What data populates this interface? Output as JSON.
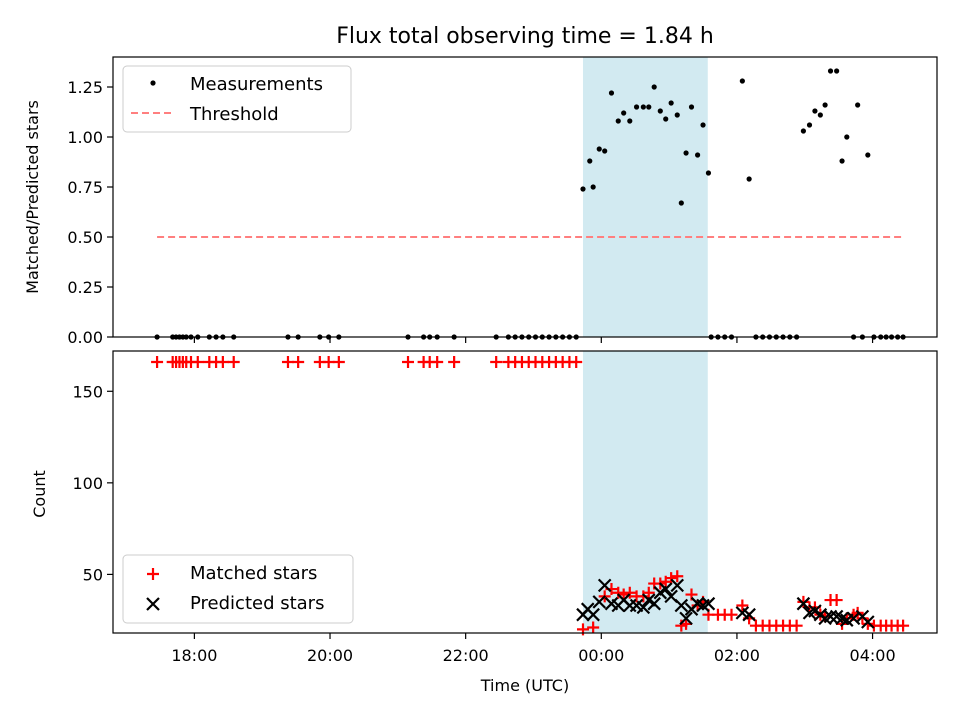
{
  "chart_data": {
    "type": "scatter",
    "title": "Flux total observing time = 1.84 h",
    "time_domain": {
      "start_hours": 16.8,
      "end_hours": 28.95
    },
    "x_ticks": [
      {
        "hour": 18,
        "label": "18:00"
      },
      {
        "hour": 20,
        "label": "20:00"
      },
      {
        "hour": 22,
        "label": "22:00"
      },
      {
        "hour": 24,
        "label": "00:00"
      },
      {
        "hour": 26,
        "label": "02:00"
      },
      {
        "hour": 28,
        "label": "04:00"
      }
    ],
    "xlabel": "Time (UTC)",
    "shaded_interval_hours": [
      23.73,
      25.57
    ],
    "top": {
      "ylabel": "Matched/Predicted stars",
      "ylim": [
        0,
        1.4
      ],
      "y_ticks": [
        0,
        0.25,
        0.5,
        0.75,
        1.0,
        1.25
      ],
      "y_tick_labels": [
        "0.00",
        "0.25",
        "0.50",
        "0.75",
        "1.00",
        "1.25"
      ],
      "threshold": {
        "value": 0.5,
        "x_range_hours": [
          17.45,
          28.45
        ]
      },
      "legend": {
        "measurements": "Measurements",
        "threshold": "Threshold",
        "placement": "upper-left"
      },
      "measurements": [
        [
          17.45,
          0
        ],
        [
          17.68,
          0
        ],
        [
          17.73,
          0
        ],
        [
          17.78,
          0
        ],
        [
          17.83,
          0
        ],
        [
          17.88,
          0
        ],
        [
          17.95,
          0
        ],
        [
          18.05,
          0
        ],
        [
          18.22,
          0
        ],
        [
          18.32,
          0
        ],
        [
          18.42,
          0
        ],
        [
          18.58,
          0
        ],
        [
          19.38,
          0
        ],
        [
          19.53,
          0
        ],
        [
          19.85,
          0
        ],
        [
          19.98,
          0
        ],
        [
          20.13,
          0
        ],
        [
          21.15,
          0
        ],
        [
          21.38,
          0
        ],
        [
          21.47,
          0
        ],
        [
          21.58,
          0
        ],
        [
          21.83,
          0
        ],
        [
          22.45,
          0
        ],
        [
          22.63,
          0
        ],
        [
          22.73,
          0
        ],
        [
          22.83,
          0
        ],
        [
          22.93,
          0
        ],
        [
          23.03,
          0
        ],
        [
          23.13,
          0
        ],
        [
          23.23,
          0
        ],
        [
          23.33,
          0
        ],
        [
          23.43,
          0
        ],
        [
          23.53,
          0
        ],
        [
          23.63,
          0
        ],
        [
          23.73,
          0.74
        ],
        [
          23.83,
          0.88
        ],
        [
          23.88,
          0.75
        ],
        [
          23.97,
          0.94
        ],
        [
          24.05,
          0.93
        ],
        [
          24.15,
          1.22
        ],
        [
          24.25,
          1.08
        ],
        [
          24.33,
          1.12
        ],
        [
          24.42,
          1.08
        ],
        [
          24.52,
          1.15
        ],
        [
          24.62,
          1.15
        ],
        [
          24.7,
          1.15
        ],
        [
          24.78,
          1.25
        ],
        [
          24.87,
          1.13
        ],
        [
          24.95,
          1.09
        ],
        [
          25.03,
          1.17
        ],
        [
          25.12,
          1.11
        ],
        [
          25.18,
          0.67
        ],
        [
          25.25,
          0.92
        ],
        [
          25.33,
          1.15
        ],
        [
          25.42,
          0.91
        ],
        [
          25.5,
          1.06
        ],
        [
          25.58,
          0.82
        ],
        [
          25.62,
          0
        ],
        [
          25.72,
          0
        ],
        [
          25.82,
          0
        ],
        [
          25.92,
          0
        ],
        [
          26.08,
          1.28
        ],
        [
          26.18,
          0.79
        ],
        [
          26.28,
          0
        ],
        [
          26.38,
          0
        ],
        [
          26.48,
          0
        ],
        [
          26.58,
          0
        ],
        [
          26.68,
          0
        ],
        [
          26.78,
          0
        ],
        [
          26.88,
          0
        ],
        [
          26.98,
          1.03
        ],
        [
          27.07,
          1.06
        ],
        [
          27.15,
          1.13
        ],
        [
          27.23,
          1.11
        ],
        [
          27.3,
          1.16
        ],
        [
          27.38,
          1.33
        ],
        [
          27.47,
          1.33
        ],
        [
          27.55,
          0.88
        ],
        [
          27.62,
          1.0
        ],
        [
          27.72,
          0
        ],
        [
          27.78,
          1.16
        ],
        [
          27.85,
          0
        ],
        [
          27.93,
          0.91
        ],
        [
          28.02,
          0
        ],
        [
          28.12,
          0
        ],
        [
          28.2,
          0
        ],
        [
          28.28,
          0
        ],
        [
          28.37,
          0
        ],
        [
          28.45,
          0
        ]
      ]
    },
    "bottom": {
      "ylabel": "Count",
      "ylim": [
        18,
        172
      ],
      "y_ticks": [
        50,
        100,
        150
      ],
      "y_tick_labels": [
        "50",
        "100",
        "150"
      ],
      "legend": {
        "matched": "Matched stars",
        "predicted": "Predicted stars",
        "placement": "lower-left"
      },
      "matched": [
        [
          17.45,
          166
        ],
        [
          17.68,
          166
        ],
        [
          17.73,
          166
        ],
        [
          17.78,
          166
        ],
        [
          17.83,
          166
        ],
        [
          17.88,
          166
        ],
        [
          17.95,
          166
        ],
        [
          18.05,
          166
        ],
        [
          18.22,
          166
        ],
        [
          18.32,
          166
        ],
        [
          18.42,
          166
        ],
        [
          18.58,
          166
        ],
        [
          19.38,
          166
        ],
        [
          19.53,
          166
        ],
        [
          19.85,
          166
        ],
        [
          19.98,
          166
        ],
        [
          20.13,
          166
        ],
        [
          21.15,
          166
        ],
        [
          21.38,
          166
        ],
        [
          21.47,
          166
        ],
        [
          21.58,
          166
        ],
        [
          21.83,
          166
        ],
        [
          22.45,
          166
        ],
        [
          22.63,
          166
        ],
        [
          22.73,
          166
        ],
        [
          22.83,
          166
        ],
        [
          22.93,
          166
        ],
        [
          23.03,
          166
        ],
        [
          23.13,
          166
        ],
        [
          23.23,
          166
        ],
        [
          23.33,
          166
        ],
        [
          23.43,
          166
        ],
        [
          23.53,
          166
        ],
        [
          23.63,
          166
        ],
        [
          23.73,
          20
        ],
        [
          23.88,
          21
        ],
        [
          24.05,
          38
        ],
        [
          24.15,
          42
        ],
        [
          24.25,
          40
        ],
        [
          24.33,
          39
        ],
        [
          24.42,
          40
        ],
        [
          24.52,
          38
        ],
        [
          24.62,
          38
        ],
        [
          24.7,
          40
        ],
        [
          24.78,
          45
        ],
        [
          24.87,
          45
        ],
        [
          24.95,
          46
        ],
        [
          25.03,
          48
        ],
        [
          25.12,
          49
        ],
        [
          25.18,
          22
        ],
        [
          25.25,
          23
        ],
        [
          25.33,
          39
        ],
        [
          25.42,
          33
        ],
        [
          25.5,
          35
        ],
        [
          25.58,
          28
        ],
        [
          25.72,
          28
        ],
        [
          25.82,
          28
        ],
        [
          25.92,
          28
        ],
        [
          26.08,
          33
        ],
        [
          26.18,
          26
        ],
        [
          26.28,
          22
        ],
        [
          26.38,
          22
        ],
        [
          26.48,
          22
        ],
        [
          26.58,
          22
        ],
        [
          26.68,
          22
        ],
        [
          26.78,
          22
        ],
        [
          26.88,
          22
        ],
        [
          26.98,
          35
        ],
        [
          27.07,
          32
        ],
        [
          27.15,
          32
        ],
        [
          27.23,
          28
        ],
        [
          27.3,
          27
        ],
        [
          27.38,
          36
        ],
        [
          27.47,
          36
        ],
        [
          27.55,
          23
        ],
        [
          27.62,
          26
        ],
        [
          27.72,
          28
        ],
        [
          27.78,
          29
        ],
        [
          27.85,
          26
        ],
        [
          27.93,
          23
        ],
        [
          28.02,
          22
        ],
        [
          28.12,
          22
        ],
        [
          28.2,
          22
        ],
        [
          28.28,
          22
        ],
        [
          28.37,
          22
        ],
        [
          28.45,
          22
        ]
      ],
      "predicted": [
        [
          23.73,
          28
        ],
        [
          23.8,
          31
        ],
        [
          23.88,
          28
        ],
        [
          23.97,
          35
        ],
        [
          24.05,
          44
        ],
        [
          24.15,
          34
        ],
        [
          24.25,
          33
        ],
        [
          24.33,
          36
        ],
        [
          24.42,
          33
        ],
        [
          24.52,
          33
        ],
        [
          24.62,
          32
        ],
        [
          24.7,
          36
        ],
        [
          24.78,
          34
        ],
        [
          24.87,
          40
        ],
        [
          24.95,
          42
        ],
        [
          25.03,
          38
        ],
        [
          25.12,
          44
        ],
        [
          25.18,
          33
        ],
        [
          25.25,
          26
        ],
        [
          25.33,
          31
        ],
        [
          25.42,
          34
        ],
        [
          25.5,
          33
        ],
        [
          25.58,
          34
        ],
        [
          26.08,
          29
        ],
        [
          26.18,
          28
        ],
        [
          26.98,
          34
        ],
        [
          27.07,
          29
        ],
        [
          27.15,
          30
        ],
        [
          27.23,
          28
        ],
        [
          27.3,
          26
        ],
        [
          27.38,
          27
        ],
        [
          27.47,
          27
        ],
        [
          27.55,
          26
        ],
        [
          27.62,
          25
        ],
        [
          27.72,
          26
        ],
        [
          27.85,
          27
        ],
        [
          27.93,
          24
        ]
      ]
    }
  }
}
